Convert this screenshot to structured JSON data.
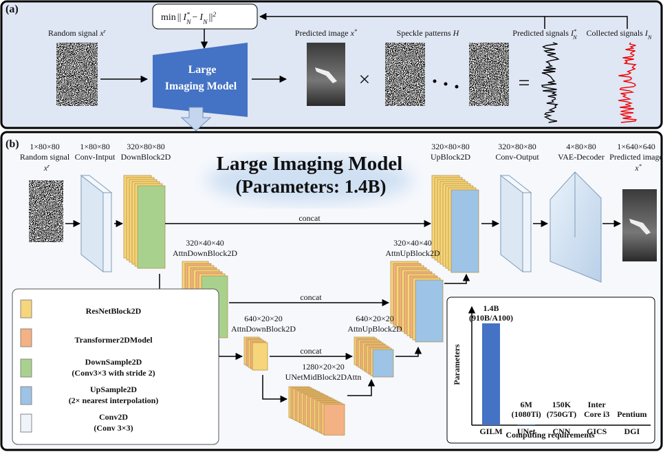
{
  "panel_a": {
    "label": "(a)",
    "loss": {
      "min": "min",
      "open": "||",
      "var1": "I",
      "sup1": "*",
      "sub1": "N",
      "minus": "−",
      "var2": "I",
      "sub2": "N",
      "close": "||",
      "power": "2"
    },
    "random_signal": {
      "text": "Random signal",
      "var": "x",
      "sup": "r"
    },
    "model": [
      "Large",
      "Imaging Model"
    ],
    "predicted_image": {
      "text": "Predicted image",
      "var": "x",
      "sup": "*"
    },
    "times": "×",
    "speckle": {
      "text": "Speckle patterns",
      "var": "H"
    },
    "equals": "=",
    "predicted_signals": {
      "text": "Predicted signals",
      "var": "I",
      "sup": "*",
      "sub": "N"
    },
    "collected_signals": {
      "text": "Collected signals",
      "var": "I",
      "sub": "N"
    }
  },
  "panel_b": {
    "label": "(b)",
    "title": "Large Imaging Model",
    "subtitle": "(Parameters: 1.4B)",
    "blocks": [
      {
        "size": "1×80×80",
        "name": "Random signal",
        "var": "x",
        "sup": "r"
      },
      {
        "size": "1×80×80",
        "name": "Conv-Intput"
      },
      {
        "size": "320×80×80",
        "name": "DownBlock2D"
      },
      {
        "size": "320×40×40",
        "name": "AttnDownBlock2D"
      },
      {
        "size": "640×20×20",
        "name": "AttnDownBlock2D"
      },
      {
        "size": "1280×20×20",
        "name": "UNetMidBlock2DAttn"
      },
      {
        "size": "640×20×20",
        "name": "AttnUpBlock2D"
      },
      {
        "size": "320×40×40",
        "name": "AttnUpBlock2D"
      },
      {
        "size": "320×80×80",
        "name": "UpBlock2D"
      },
      {
        "size": "320×80×80",
        "name": "Conv-Output"
      },
      {
        "size": "4×80×80",
        "name": "VAE-Decoder"
      },
      {
        "size": "1×640×640",
        "name": "Predicted image",
        "var": "x",
        "sup": "*"
      }
    ],
    "concat": [
      "concat",
      "concat",
      "concat"
    ],
    "legend": [
      {
        "name": "ResNetBlock2D",
        "color": "#f7d57a"
      },
      {
        "name": "Transformer2DModel",
        "color": "#f4b183"
      },
      {
        "name": "DownSample2D",
        "detail": "(Conv3×3 with stride 2)",
        "color": "#a9d18e"
      },
      {
        "name": "UpSample2D",
        "detail": "(2× nearest interpolation)",
        "color": "#9dc3e6"
      },
      {
        "name": "Conv2D",
        "detail": "(Conv 3×3)",
        "color": "#eef4fa"
      }
    ],
    "inset_chart": {
      "type": "bar",
      "y_label": "Parameters",
      "x_label": "Computing requirements",
      "categories": [
        "GILM",
        "UNet",
        "CNN",
        "GICS",
        "DGI"
      ],
      "values": [
        1400000000,
        6000000,
        150000,
        null,
        null
      ],
      "value_labels": [
        "1.4B",
        "6M",
        "150K",
        null,
        null
      ],
      "hardware": [
        [
          "(910B/A100)"
        ],
        [
          "(1080Ti)"
        ],
        [
          "(750GT)"
        ],
        [
          "Inter",
          "Core i3"
        ],
        [
          "Pentium"
        ]
      ],
      "color": "#4472c4"
    }
  }
}
